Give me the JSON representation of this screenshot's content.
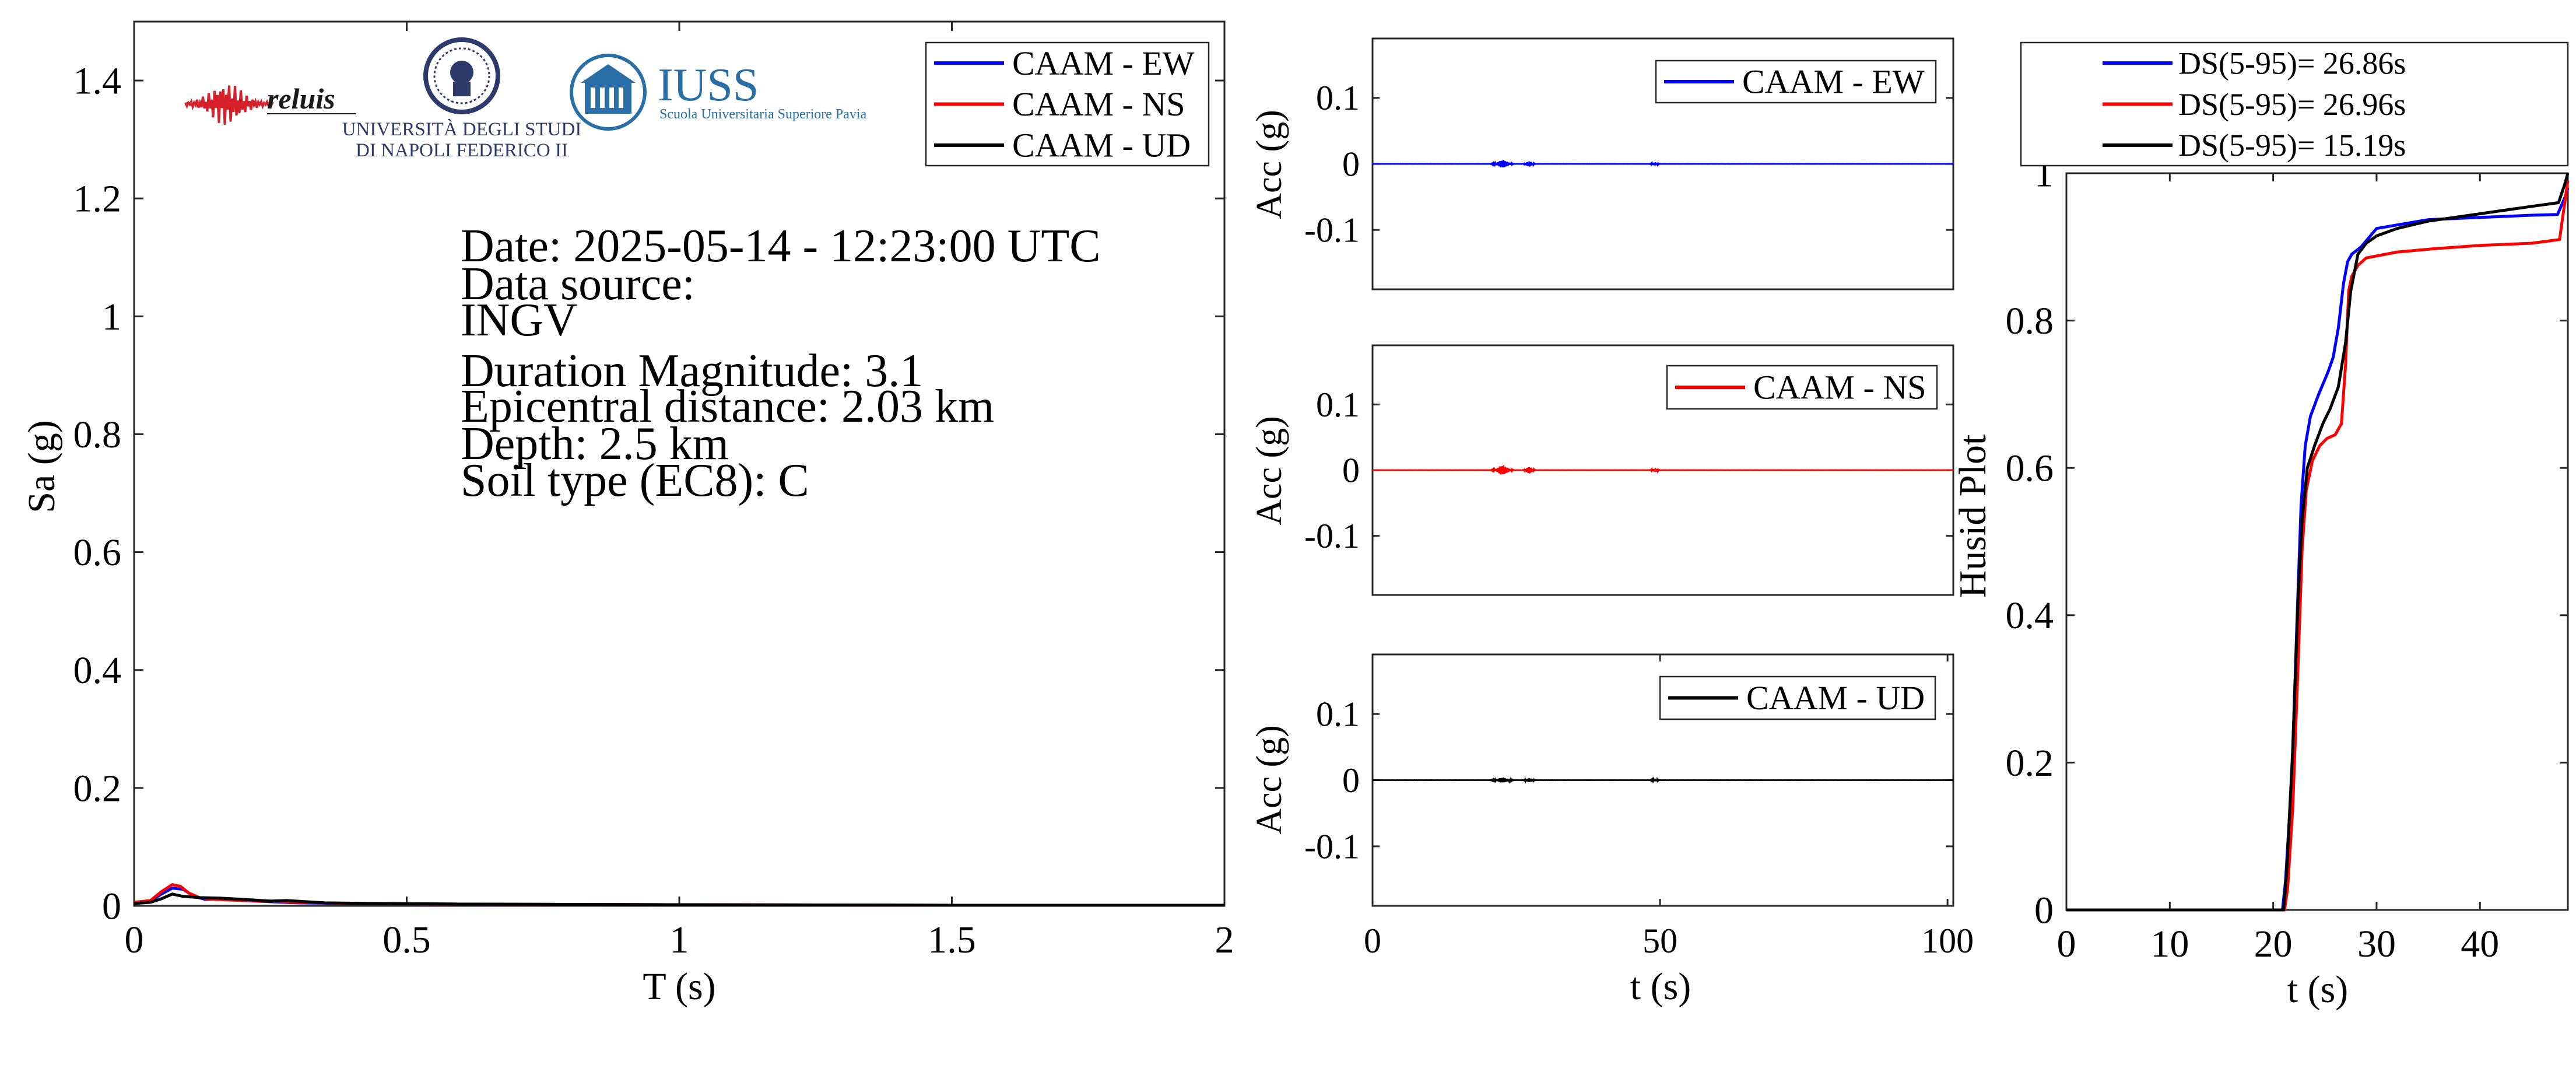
{
  "chart_data": [
    {
      "id": "spectrum",
      "type": "line",
      "xlabel": "T (s)",
      "ylabel": "Sa (g)",
      "xlim": [
        0,
        2
      ],
      "ylim": [
        0,
        1.5
      ],
      "xticks": [
        0,
        0.5,
        1,
        1.5,
        2
      ],
      "xtick_labels": [
        "0",
        "0.5",
        "1",
        "1.5",
        "2"
      ],
      "yticks": [
        0,
        0.2,
        0.4,
        0.6,
        0.8,
        1,
        1.2,
        1.4
      ],
      "ytick_labels": [
        "0",
        "0.2",
        "0.4",
        "0.6",
        "0.8",
        "1",
        "1.2",
        "1.4"
      ],
      "legend_position": "top-right",
      "series": [
        {
          "name": "CAAM - EW",
          "color": "#0000ff",
          "x": [
            0,
            0.03,
            0.05,
            0.07,
            0.09,
            0.11,
            0.13,
            0.16,
            0.2,
            0.25,
            0.3,
            0.4,
            0.6,
            1,
            1.5,
            2
          ],
          "y": [
            0.006,
            0.008,
            0.02,
            0.03,
            0.028,
            0.016,
            0.011,
            0.012,
            0.009,
            0.007,
            0.005,
            0.004,
            0.003,
            0.002,
            0.001,
            0.001
          ]
        },
        {
          "name": "CAAM - NS",
          "color": "#ff0000",
          "x": [
            0,
            0.03,
            0.05,
            0.07,
            0.085,
            0.1,
            0.12,
            0.15,
            0.2,
            0.25,
            0.3,
            0.4,
            0.6,
            1,
            1.5,
            2
          ],
          "y": [
            0.006,
            0.009,
            0.024,
            0.036,
            0.033,
            0.022,
            0.014,
            0.011,
            0.009,
            0.008,
            0.006,
            0.004,
            0.003,
            0.002,
            0.001,
            0.001
          ]
        },
        {
          "name": "CAAM - UD",
          "color": "#000000",
          "x": [
            0,
            0.03,
            0.05,
            0.07,
            0.09,
            0.12,
            0.16,
            0.2,
            0.25,
            0.28,
            0.35,
            0.45,
            0.6,
            1,
            1.5,
            2
          ],
          "y": [
            0.004,
            0.006,
            0.012,
            0.02,
            0.016,
            0.014,
            0.013,
            0.011,
            0.008,
            0.009,
            0.005,
            0.004,
            0.003,
            0.002,
            0.001,
            0.001
          ]
        }
      ],
      "annotations": {
        "date": "Date: 2025-05-14 - 12:23:00 UTC",
        "source_label": "Data source:",
        "source_value": "INGV",
        "magnitude": "Duration Magnitude: 3.1",
        "distance": "Epicentral distance: 2.03 km",
        "depth": "Depth: 2.5 km",
        "soil": "Soil type (EC8): C"
      },
      "logos": {
        "reluis": "reluis",
        "unina_line1": "UNIVERSITÀ DEGLI STUDI",
        "unina_line2": "DI NAPOLI FEDERICO II",
        "iuss": "IUSS",
        "iuss_sub": "Scuola Universitaria Superiore Pavia"
      }
    },
    {
      "id": "acc-ew",
      "type": "line",
      "xlabel": "",
      "ylabel": "Acc (g)",
      "xlim": [
        0,
        101
      ],
      "ylim": [
        -0.19,
        0.19
      ],
      "yticks": [
        0.1,
        0,
        -0.1
      ],
      "ytick_labels": [
        "0.1",
        "0",
        "-0.1"
      ],
      "legend_position": "top-right",
      "series": [
        {
          "name": "CAAM - EW",
          "color": "#0000ff",
          "bursts": [
            {
              "t": 21.0,
              "a": 0.0008
            },
            {
              "t": 21.6,
              "a": 0.0015
            },
            {
              "t": 22.2,
              "a": 0.0045
            },
            {
              "t": 22.8,
              "a": 0.0055
            },
            {
              "t": 23.4,
              "a": 0.003
            },
            {
              "t": 24.0,
              "a": 0.0012
            },
            {
              "t": 26.8,
              "a": 0.002
            },
            {
              "t": 27.3,
              "a": 0.0035
            },
            {
              "t": 27.8,
              "a": 0.0012
            },
            {
              "t": 48.8,
              "a": 0.0015
            },
            {
              "t": 49.3,
              "a": 0.002
            }
          ]
        }
      ]
    },
    {
      "id": "acc-ns",
      "type": "line",
      "xlabel": "",
      "ylabel": "Acc (g)",
      "xlim": [
        0,
        101
      ],
      "ylim": [
        -0.19,
        0.19
      ],
      "yticks": [
        0.1,
        0,
        -0.1
      ],
      "ytick_labels": [
        "0.1",
        "0",
        "-0.1"
      ],
      "legend_position": "top-right",
      "series": [
        {
          "name": "CAAM - NS",
          "color": "#ff0000",
          "bursts": [
            {
              "t": 21.0,
              "a": 0.0008
            },
            {
              "t": 21.6,
              "a": 0.002
            },
            {
              "t": 22.2,
              "a": 0.006
            },
            {
              "t": 22.8,
              "a": 0.0065
            },
            {
              "t": 23.4,
              "a": 0.0035
            },
            {
              "t": 24.0,
              "a": 0.0015
            },
            {
              "t": 26.8,
              "a": 0.0025
            },
            {
              "t": 27.3,
              "a": 0.0045
            },
            {
              "t": 27.8,
              "a": 0.0015
            },
            {
              "t": 48.8,
              "a": 0.0015
            },
            {
              "t": 49.3,
              "a": 0.0022
            }
          ]
        }
      ]
    },
    {
      "id": "acc-ud",
      "type": "line",
      "xlabel": "t (s)",
      "ylabel": "Acc (g)",
      "xlim": [
        0,
        101
      ],
      "ylim": [
        -0.19,
        0.19
      ],
      "xticks": [
        0,
        50,
        100
      ],
      "xtick_labels": [
        "0",
        "50",
        "100"
      ],
      "yticks": [
        0.1,
        0,
        -0.1
      ],
      "ytick_labels": [
        "0.1",
        "0",
        "-0.1"
      ],
      "legend_position": "top-right",
      "series": [
        {
          "name": "CAAM - UD",
          "color": "#000000",
          "bursts": [
            {
              "t": 21.0,
              "a": 0.0006
            },
            {
              "t": 21.6,
              "a": 0.0012
            },
            {
              "t": 22.2,
              "a": 0.003
            },
            {
              "t": 22.8,
              "a": 0.0035
            },
            {
              "t": 23.4,
              "a": 0.002
            },
            {
              "t": 24.0,
              "a": 0.001
            },
            {
              "t": 26.8,
              "a": 0.0015
            },
            {
              "t": 27.3,
              "a": 0.0025
            },
            {
              "t": 27.8,
              "a": 0.001
            },
            {
              "t": 48.8,
              "a": 0.001
            },
            {
              "t": 49.3,
              "a": 0.0015
            }
          ]
        }
      ]
    },
    {
      "id": "husid",
      "type": "line",
      "xlabel": "t (s)",
      "ylabel": "Husid Plot",
      "xlim": [
        0,
        48.5
      ],
      "ylim": [
        0,
        1
      ],
      "xticks": [
        0,
        10,
        20,
        30,
        40
      ],
      "xtick_labels": [
        "0",
        "10",
        "20",
        "30",
        "40"
      ],
      "yticks": [
        0,
        0.2,
        0.4,
        0.6,
        0.8,
        1
      ],
      "ytick_labels": [
        "0",
        "0.2",
        "0.4",
        "0.6",
        "0.8",
        "1"
      ],
      "legend_position": "above",
      "series": [
        {
          "name": "DS(5-95)= 26.86s",
          "color": "#0000ff",
          "x": [
            0,
            20.9,
            21.2,
            21.8,
            22.3,
            22.7,
            23.1,
            23.6,
            24.4,
            25.3,
            25.8,
            26.3,
            26.8,
            27.2,
            27.6,
            28.5,
            30,
            35,
            40,
            45,
            47.5,
            48.3,
            48.5
          ],
          "y": [
            0,
            0,
            0.04,
            0.18,
            0.39,
            0.55,
            0.63,
            0.67,
            0.7,
            0.73,
            0.75,
            0.79,
            0.85,
            0.88,
            0.89,
            0.9,
            0.925,
            0.937,
            0.94,
            0.943,
            0.944,
            0.97,
            0.98
          ]
        },
        {
          "name": "DS(5-95)= 26.96s",
          "color": "#ff0000",
          "x": [
            0,
            21.1,
            21.4,
            21.9,
            22.4,
            22.8,
            23.2,
            23.8,
            24.5,
            25.2,
            26,
            26.6,
            27.0,
            27.3,
            27.6,
            28.2,
            29,
            32,
            36,
            40,
            45,
            47.7,
            48.2,
            48.5
          ],
          "y": [
            0,
            0,
            0.03,
            0.14,
            0.33,
            0.49,
            0.57,
            0.61,
            0.63,
            0.64,
            0.645,
            0.66,
            0.74,
            0.84,
            0.86,
            0.875,
            0.885,
            0.893,
            0.898,
            0.902,
            0.905,
            0.91,
            0.96,
            0.99
          ]
        },
        {
          "name": "DS(5-95)= 15.19s",
          "color": "#000000",
          "x": [
            0,
            21.0,
            21.3,
            21.9,
            22.4,
            22.8,
            23.3,
            24,
            24.8,
            25.5,
            26.3,
            27.0,
            27.5,
            28.2,
            29,
            30,
            32,
            35,
            40,
            45,
            47.6,
            48.2,
            48.5
          ],
          "y": [
            0,
            0,
            0.05,
            0.22,
            0.42,
            0.53,
            0.6,
            0.63,
            0.66,
            0.68,
            0.71,
            0.77,
            0.84,
            0.89,
            0.905,
            0.915,
            0.925,
            0.935,
            0.945,
            0.955,
            0.96,
            0.985,
            1.0
          ]
        }
      ]
    }
  ]
}
